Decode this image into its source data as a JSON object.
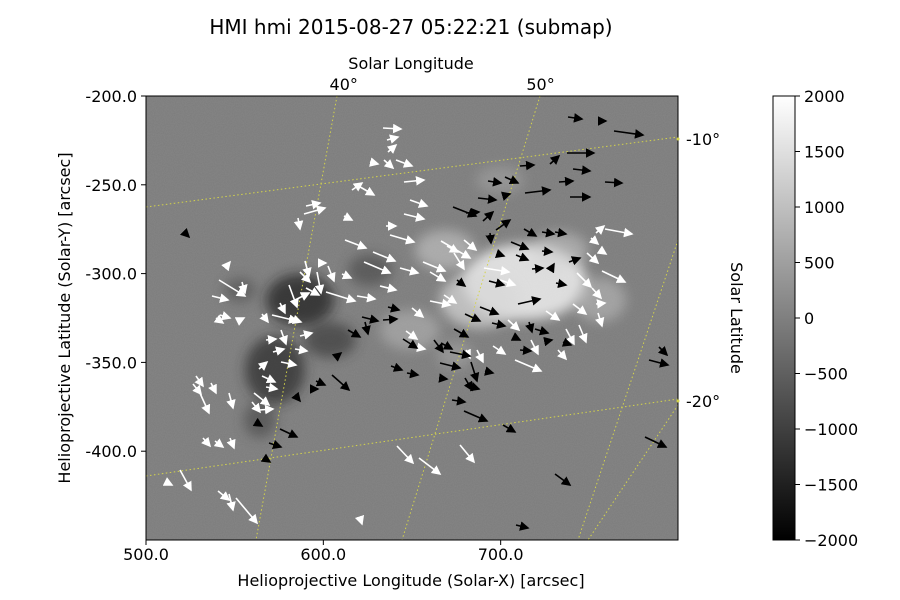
{
  "chart_data": {
    "type": "heatmap",
    "title": "HMI hmi 2015-08-27 05:22:21 (submap)",
    "xlabel": "Helioprojective Longitude (Solar-X) [arcsec]",
    "ylabel": "Helioprojective Latitude (Solar-Y) [arcsec]",
    "top_axis_label": "Solar Longitude",
    "right_axis_label": "Solar Latitude",
    "xlim": [
      500,
      800
    ],
    "ylim": [
      -450,
      -200
    ],
    "x_ticks": [
      "500.0",
      "600.0",
      "700.0"
    ],
    "y_ticks": [
      "-200.0",
      "-250.0",
      "-300.0",
      "-350.0",
      "-400.0"
    ],
    "longitude_ticks": [
      "40°",
      "50°"
    ],
    "latitude_ticks": [
      "-10°",
      "-20°"
    ],
    "colorbar": {
      "range": [
        -2000,
        2000
      ],
      "ticks": [
        "2000",
        "1500",
        "1000",
        "500",
        "0",
        "−500",
        "−1000",
        "−1500",
        "−2000"
      ],
      "colors": [
        "#000000",
        "#ffffff"
      ]
    },
    "grid_color": "#d4d44a",
    "field_positive_color": "#ffffff",
    "field_negative_color": "#000000",
    "background_value": 0
  }
}
